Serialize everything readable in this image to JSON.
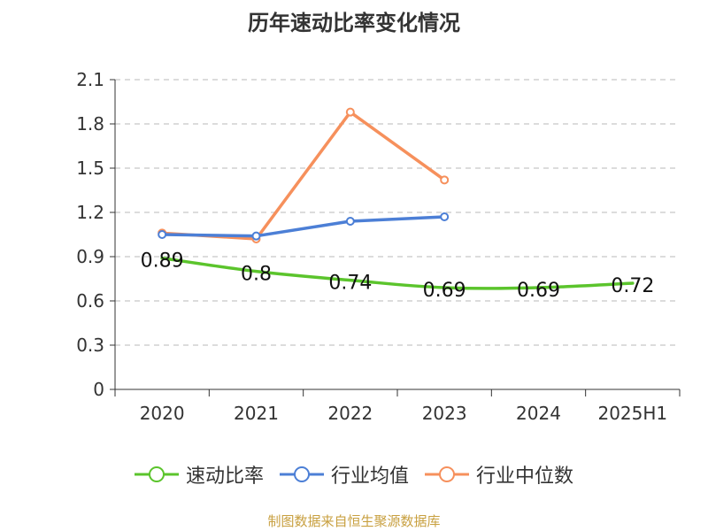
{
  "title": "历年速动比率变化情况",
  "source": "制图数据来自恒生聚源数据库",
  "colors": {
    "quick_ratio": "#5bc42c",
    "industry_avg": "#4c7fd6",
    "industry_median": "#f6905c",
    "grid": "#c8c8c8",
    "axis": "#333333"
  },
  "chart_data": {
    "type": "line",
    "title": "历年速动比率变化情况",
    "categories": [
      "2020",
      "2021",
      "2022",
      "2023",
      "2024",
      "2025H1"
    ],
    "ylim": [
      0,
      2.1
    ],
    "yticks": [
      "0",
      "0.3",
      "0.6",
      "0.9",
      "1.2",
      "1.5",
      "1.8",
      "2.1"
    ],
    "grid": true,
    "legend_position": "bottom",
    "series": [
      {
        "name": "速动比率",
        "values": [
          0.89,
          0.8,
          0.74,
          0.69,
          0.69,
          0.72
        ],
        "labels": [
          "0.89",
          "0.8",
          "0.74",
          "0.69",
          "0.69",
          "0.72"
        ],
        "markers": false,
        "color": "#5bc42c"
      },
      {
        "name": "行业均值",
        "values": [
          1.05,
          1.04,
          1.14,
          1.17,
          null,
          null
        ],
        "markers": true,
        "color": "#4c7fd6"
      },
      {
        "name": "行业中位数",
        "values": [
          1.06,
          1.02,
          1.88,
          1.42,
          null,
          null
        ],
        "markers": true,
        "color": "#f6905c"
      }
    ]
  }
}
